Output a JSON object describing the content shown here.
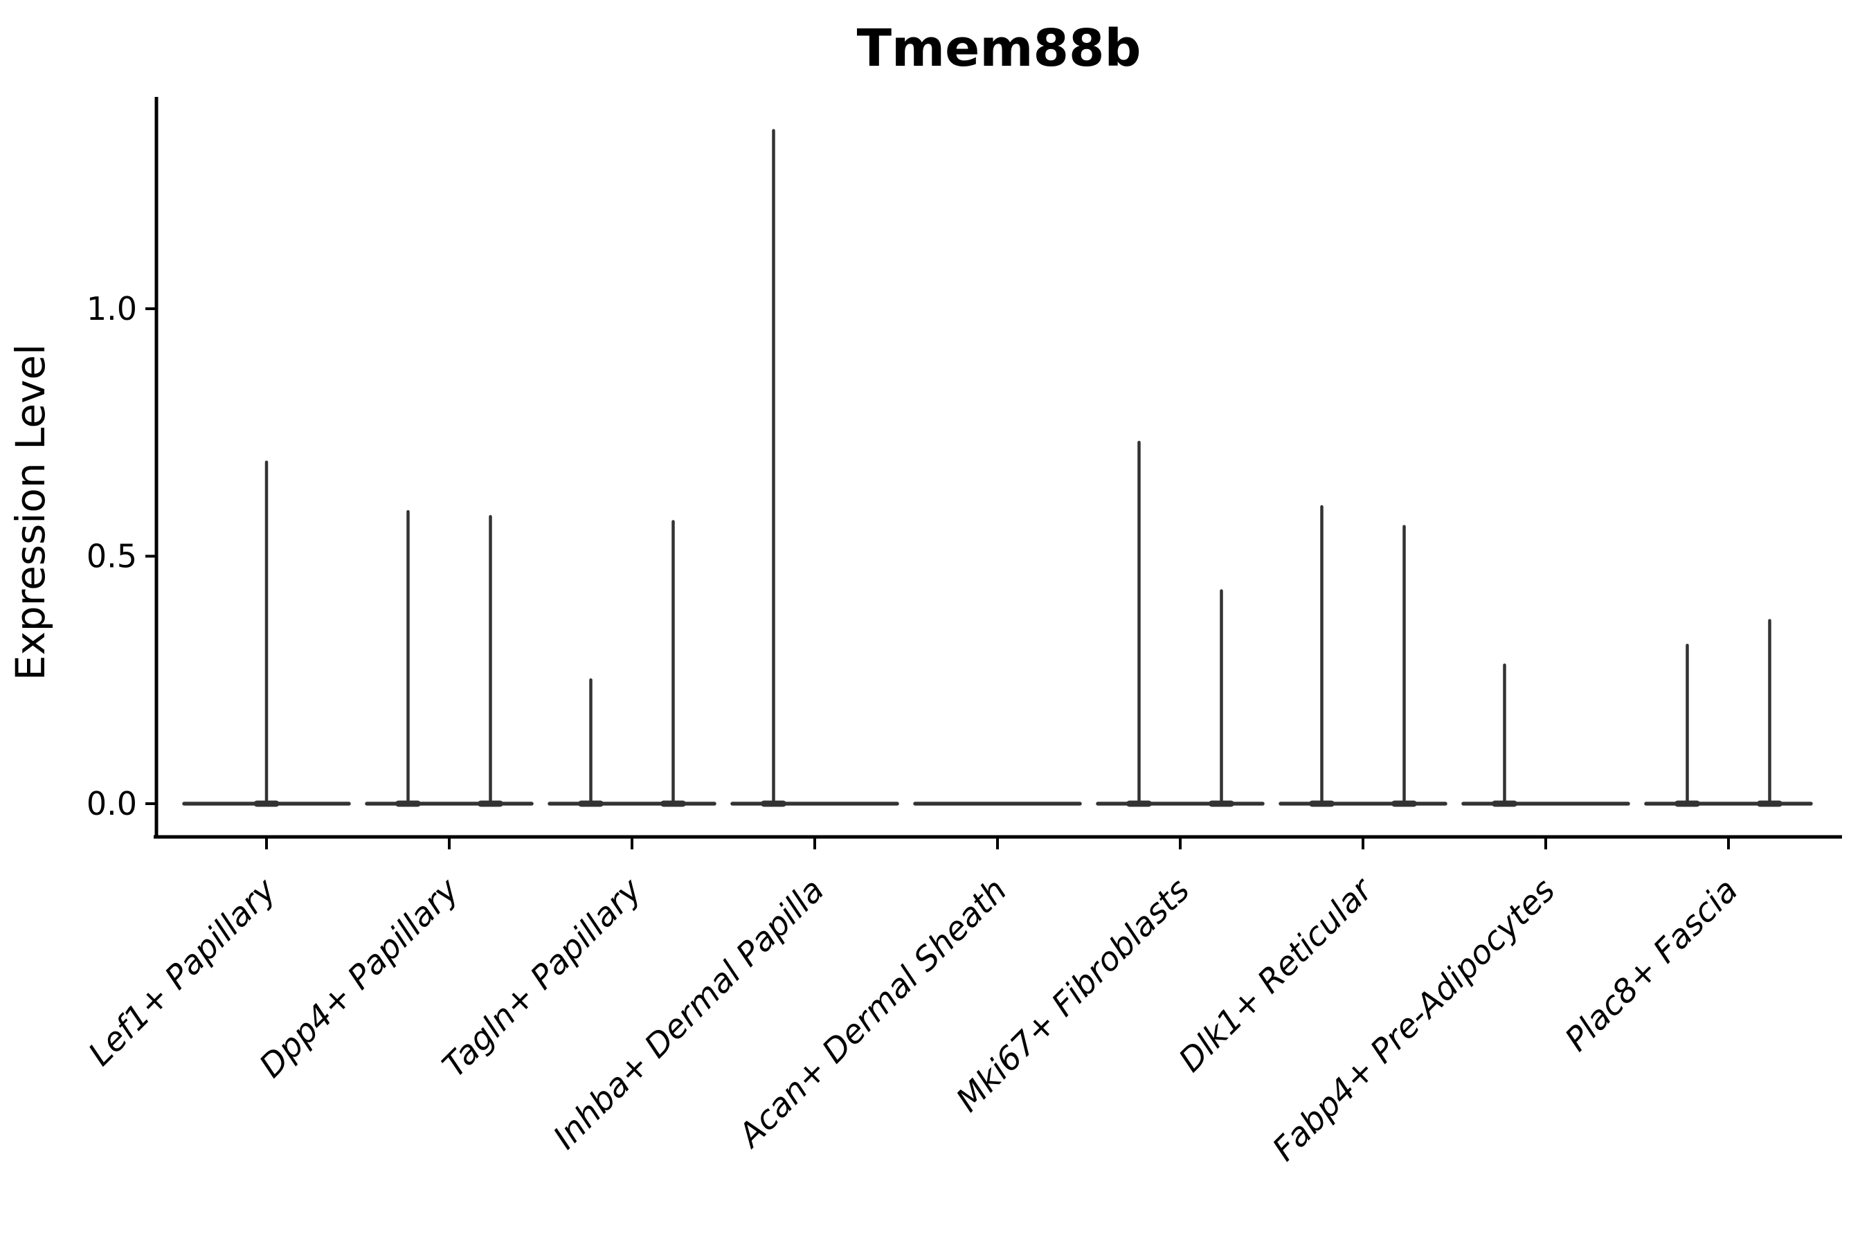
{
  "chart_data": {
    "type": "violin",
    "title": "Tmem88b",
    "xlabel": "",
    "ylabel": "Expression Level",
    "grid": false,
    "legend_position": "none",
    "ylim": [
      -0.07,
      1.42
    ],
    "yticks": [
      {
        "label": "0.0",
        "value": 0.0
      },
      {
        "label": "0.5",
        "value": 0.5
      },
      {
        "label": "1.0",
        "value": 1.0
      }
    ],
    "colors": {
      "violin_line": "#333333",
      "axis": "#000000",
      "text": "#000000",
      "background": "#ffffff"
    },
    "categories": [
      {
        "label": "Lef1+ Papillary",
        "spikes": [
          {
            "side": "center",
            "max": 0.69
          }
        ]
      },
      {
        "label": "Dpp4+ Papillary",
        "spikes": [
          {
            "side": "left",
            "max": 0.59
          },
          {
            "side": "right",
            "max": 0.58
          }
        ]
      },
      {
        "label": "Tagln+ Papillary",
        "spikes": [
          {
            "side": "left",
            "max": 0.25
          },
          {
            "side": "right",
            "max": 0.57
          }
        ]
      },
      {
        "label": "Inhba+ Dermal Papilla",
        "spikes": [
          {
            "side": "left",
            "max": 1.36
          }
        ]
      },
      {
        "label": "Acan+ Dermal Sheath",
        "spikes": []
      },
      {
        "label": "Mki67+ Fibroblasts",
        "spikes": [
          {
            "side": "left",
            "max": 0.73
          },
          {
            "side": "right",
            "max": 0.43
          }
        ]
      },
      {
        "label": "Dlk1+ Reticular",
        "spikes": [
          {
            "side": "left",
            "max": 0.6
          },
          {
            "side": "right",
            "max": 0.56
          }
        ]
      },
      {
        "label": "Fabp4+ Pre-Adipocytes",
        "spikes": [
          {
            "side": "left",
            "max": 0.28
          }
        ]
      },
      {
        "label": "Plac8+ Fascia",
        "spikes": [
          {
            "side": "left",
            "max": 0.32
          },
          {
            "side": "right",
            "max": 0.37
          }
        ]
      }
    ]
  }
}
